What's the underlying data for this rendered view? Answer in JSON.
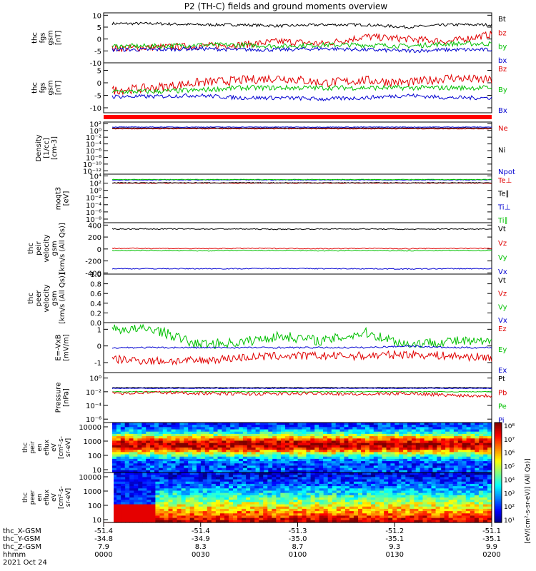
{
  "title": "P2 (TH-C) fields and ground moments overview",
  "panels": [
    {
      "label_lines": [
        "thc",
        "fgs",
        "gsm",
        "[nT]"
      ],
      "ticks": [
        "10",
        "5",
        "0",
        "-5",
        "-10"
      ],
      "tick_values": [
        10,
        5,
        0,
        -5,
        -10
      ],
      "ylim": [
        -10,
        11
      ],
      "scale": "linear",
      "legend": [
        {
          "name": "Bt",
          "color": "#000000"
        },
        {
          "name": "bz",
          "color": "#e00000"
        },
        {
          "name": "by",
          "color": "#00c000"
        },
        {
          "name": "bx",
          "color": "#0000d0"
        }
      ],
      "series": [
        {
          "name": "Bt",
          "color": "#000000",
          "level": [
            6.5,
            6.5,
            6,
            6,
            5.5,
            6,
            6,
            5,
            6,
            6
          ],
          "noise": 0.6
        },
        {
          "name": "bz",
          "color": "#e00000",
          "level": [
            -4,
            -3.5,
            -3,
            -2.5,
            -1,
            -2,
            1,
            0,
            -1,
            2
          ],
          "noise": 1.5
        },
        {
          "name": "by",
          "color": "#00c000",
          "level": [
            -3,
            -3,
            -2.5,
            -2.5,
            -3,
            -2.5,
            -2.5,
            -3,
            -2,
            -2
          ],
          "noise": 1.0
        },
        {
          "name": "bx",
          "color": "#0000d0",
          "level": [
            -4.5,
            -4.5,
            -4,
            -4.5,
            -4.5,
            -4,
            -4.5,
            -5,
            -4.5,
            -4.5
          ],
          "noise": 0.8
        }
      ]
    },
    {
      "label_lines": [
        "thc",
        "fgs",
        "gsm",
        "[nT]"
      ],
      "ticks": [
        "5",
        "0",
        "-5",
        "-10"
      ],
      "tick_values": [
        5,
        0,
        -5,
        -10
      ],
      "ylim": [
        -12,
        8
      ],
      "scale": "linear",
      "legend": [
        {
          "name": "Bz",
          "color": "#e00000"
        },
        {
          "name": "By",
          "color": "#00c000"
        },
        {
          "name": "Bx",
          "color": "#0000d0"
        }
      ],
      "series": [
        {
          "name": "Bz",
          "color": "#e00000",
          "level": [
            -3,
            -2,
            0,
            1,
            2,
            0,
            1,
            0,
            2,
            1
          ],
          "noise": 1.8
        },
        {
          "name": "By",
          "color": "#00c000",
          "level": [
            -3.5,
            -3.5,
            -3,
            -2,
            -2,
            -2,
            -2,
            -2,
            -2,
            -2
          ],
          "noise": 1.0
        },
        {
          "name": "Bx",
          "color": "#0000d0",
          "level": [
            -5.5,
            -5.5,
            -5,
            -6,
            -6,
            -6.5,
            -6,
            -5,
            -6,
            -6
          ],
          "noise": 0.8
        }
      ]
    },
    {
      "label_lines": [
        "Density",
        "[1/cc]",
        "[cm-3]"
      ],
      "ticks": [
        "10²",
        "10⁰",
        "10⁻²",
        "10⁻⁴",
        "10⁻⁶",
        "10⁻⁸",
        "10⁻¹⁰",
        "10⁻¹²"
      ],
      "tick_values": [
        2,
        0,
        -2,
        -4,
        -6,
        -8,
        -10,
        -12
      ],
      "ylim": [
        -13,
        2.5
      ],
      "scale": "log",
      "legend": [
        {
          "name": "Ne",
          "color": "#e00000"
        },
        {
          "name": "Ni",
          "color": "#000000"
        },
        {
          "name": "Npot",
          "color": "#0000d0"
        }
      ],
      "series": [
        {
          "name": "Ne",
          "color": "#e00000",
          "level": [
            0.5,
            0.5,
            0.5,
            0.5,
            0.5,
            0.5,
            0.5,
            0.5,
            0.5,
            0.5
          ],
          "noise": 0.1
        },
        {
          "name": "Ni",
          "color": "#000000",
          "level": [
            0.7,
            0.7,
            0.7,
            0.7,
            0.7,
            0.7,
            0.7,
            0.7,
            0.7,
            0.7
          ],
          "noise": 0.1
        },
        {
          "name": "Npot",
          "color": "#0000d0",
          "level": [
            1.0,
            1.0,
            1.0,
            1.0,
            1.0,
            1.0,
            1.0,
            1.0,
            1.0,
            1.0
          ],
          "noise": 0.08
        }
      ]
    },
    {
      "label_lines": [
        "moqt3",
        "[eV]"
      ],
      "ticks": [
        "10⁴",
        "10²",
        "10⁰",
        "10⁻²",
        "10⁻⁴",
        "10⁻⁶",
        "10⁻⁸"
      ],
      "tick_values": [
        4,
        2,
        0,
        -2,
        -4,
        -6,
        -8
      ],
      "ylim": [
        -9,
        4.5
      ],
      "scale": "log",
      "legend": [
        {
          "name": "Te⊥",
          "color": "#e00000"
        },
        {
          "name": "Te∥",
          "color": "#000000"
        },
        {
          "name": "Ti⊥",
          "color": "#0000d0"
        },
        {
          "name": "Ti∥",
          "color": "#00c000"
        }
      ],
      "series": [
        {
          "name": "Te⊥",
          "color": "#e00000",
          "level": [
            2,
            2,
            2,
            2,
            2,
            2,
            2,
            2,
            2,
            2
          ],
          "noise": 0.1
        },
        {
          "name": "Te∥",
          "color": "#000000",
          "level": [
            2.1,
            2.1,
            2.1,
            2.1,
            2.1,
            2.1,
            2.1,
            2.1,
            2.1,
            2.1
          ],
          "noise": 0.1
        },
        {
          "name": "Ti⊥",
          "color": "#0000d0",
          "level": [
            2.9,
            2.9,
            2.9,
            2.9,
            2.9,
            2.9,
            2.9,
            2.9,
            2.9,
            2.9
          ],
          "noise": 0.08
        },
        {
          "name": "Ti∥",
          "color": "#00c000",
          "level": [
            3.0,
            3.0,
            3.0,
            3.0,
            3.0,
            3.0,
            3.0,
            3.0,
            3.0,
            3.0
          ],
          "noise": 0.08
        }
      ]
    },
    {
      "label_lines": [
        "thc",
        "peir",
        "velocity",
        "gsm",
        "[km/s (All Qs)]"
      ],
      "ticks": [
        "400",
        "200",
        "0",
        "-200",
        "-400"
      ],
      "tick_values": [
        400,
        200,
        0,
        -200,
        -400
      ],
      "ylim": [
        -420,
        440
      ],
      "scale": "linear",
      "legend": [
        {
          "name": "Vt",
          "color": "#000000"
        },
        {
          "name": "Vz",
          "color": "#e00000"
        },
        {
          "name": "Vy",
          "color": "#00c000"
        },
        {
          "name": "Vx",
          "color": "#0000d0"
        }
      ],
      "series": [
        {
          "name": "Vt",
          "color": "#000000",
          "level": [
            335,
            335,
            335,
            335,
            330,
            335,
            335,
            330,
            335,
            335
          ],
          "noise": 8
        },
        {
          "name": "Vz",
          "color": "#e00000",
          "level": [
            10,
            10,
            5,
            10,
            10,
            5,
            10,
            5,
            10,
            10
          ],
          "noise": 8
        },
        {
          "name": "Vy",
          "color": "#00c000",
          "level": [
            -25,
            -25,
            -30,
            -25,
            -25,
            -30,
            -25,
            -30,
            -25,
            -25
          ],
          "noise": 8
        },
        {
          "name": "Vx",
          "color": "#0000d0",
          "level": [
            -330,
            -330,
            -330,
            -330,
            -325,
            -330,
            -330,
            -335,
            -330,
            -330
          ],
          "noise": 8
        }
      ]
    },
    {
      "label_lines": [
        "thc",
        "peer",
        "velocity",
        "gsm",
        "[km/s (All Qs)]"
      ],
      "ticks": [
        "1.0",
        "0.8",
        "0.6",
        "0.4",
        "0.2",
        "0.0"
      ],
      "tick_values": [
        1,
        0.8,
        0.6,
        0.4,
        0.2,
        0
      ],
      "ylim": [
        0,
        1
      ],
      "scale": "linear",
      "legend": [
        {
          "name": "Vt",
          "color": "#000000"
        },
        {
          "name": "Vz",
          "color": "#e00000"
        },
        {
          "name": "Vy",
          "color": "#00c000"
        },
        {
          "name": "Vx",
          "color": "#0000d0"
        }
      ],
      "series": []
    },
    {
      "label_lines": [
        "E=-VxB",
        "[mV/m]"
      ],
      "ticks": [
        "1",
        "0",
        "-1"
      ],
      "tick_values": [
        1,
        0,
        -1
      ],
      "ylim": [
        -1.6,
        1.4
      ],
      "scale": "linear",
      "legend": [
        {
          "name": "Ez",
          "color": "#e00000"
        },
        {
          "name": "Ey",
          "color": "#00c000"
        },
        {
          "name": "Ex",
          "color": "#0000d0"
        }
      ],
      "series": [
        {
          "name": "Ez",
          "color": "#e00000",
          "level": [
            -0.8,
            -0.9,
            -0.9,
            -0.7,
            -0.6,
            -0.6,
            -0.6,
            -0.5,
            -0.6,
            -0.7
          ],
          "noise": 0.25
        },
        {
          "name": "Ey",
          "color": "#00c000",
          "level": [
            1.0,
            1.0,
            0.1,
            0.2,
            0.6,
            0.3,
            0.8,
            0.1,
            0.3,
            0.2
          ],
          "noise": 0.3
        },
        {
          "name": "Ex",
          "color": "#0000d0",
          "level": [
            -0.1,
            -0.1,
            -0.1,
            -0.1,
            -0.1,
            -0.1,
            -0.1,
            0.0,
            -0.1,
            -0.1
          ],
          "noise": 0.05
        }
      ]
    },
    {
      "label_lines": [
        "Pressure",
        "[nPa]"
      ],
      "ticks": [
        "10⁰",
        "10⁻²",
        "10⁻⁴",
        "10⁻⁶"
      ],
      "tick_values": [
        0,
        -2,
        -4,
        -6
      ],
      "ylim": [
        -6.5,
        0.8
      ],
      "scale": "log",
      "legend": [
        {
          "name": "Pt",
          "color": "#000000"
        },
        {
          "name": "Pb",
          "color": "#e00000"
        },
        {
          "name": "Pe",
          "color": "#00c000"
        },
        {
          "name": "Pi",
          "color": "#0000d0"
        }
      ],
      "series": [
        {
          "name": "Pt",
          "color": "#000000",
          "level": [
            -1.4,
            -1.4,
            -1.4,
            -1.4,
            -1.4,
            -1.4,
            -1.4,
            -1.4,
            -1.4,
            -1.4
          ],
          "noise": 0.05
        },
        {
          "name": "Pi",
          "color": "#0000d0",
          "level": [
            -1.5,
            -1.5,
            -1.5,
            -1.5,
            -1.5,
            -1.5,
            -1.5,
            -1.5,
            -1.5,
            -1.5
          ],
          "noise": 0.05
        },
        {
          "name": "Pe",
          "color": "#00c000",
          "level": [
            -2.0,
            -2.0,
            -2.0,
            -2.0,
            -2.0,
            -2.0,
            -2.0,
            -2.0,
            -2.0,
            -2.0
          ],
          "noise": 0.05
        },
        {
          "name": "Pb",
          "color": "#e00000",
          "level": [
            -2.2,
            -2.1,
            -2.2,
            -2.3,
            -2.3,
            -2.2,
            -2.4,
            -2.2,
            -2.5,
            -2.6
          ],
          "noise": 0.25
        }
      ]
    }
  ],
  "spectrograms": [
    {
      "label_lines": [
        "thc",
        "peir",
        "en",
        "eflux",
        "eV",
        "[cm²-s-",
        "sr-eV]"
      ],
      "ticks": [
        "10000",
        "1000",
        "100",
        "10"
      ],
      "tick_values": [
        4,
        3,
        2,
        1
      ]
    },
    {
      "label_lines": [
        "thc",
        "peer",
        "en",
        "eflux",
        "eV",
        "[cm²-s-",
        "sr-eV]"
      ],
      "ticks": [
        "10000",
        "1000",
        "100",
        "10"
      ],
      "tick_values": [
        4,
        3,
        2,
        1
      ]
    }
  ],
  "colorbar": {
    "label": "[eV/(cm²-s-sr-eV)] (All Qs)]",
    "ticks": [
      "10⁸",
      "10⁷",
      "10⁶",
      "10⁵",
      "10⁴",
      "10³",
      "10²",
      "10¹"
    ]
  },
  "x_axis": {
    "rows": [
      {
        "label": "thc_X-GSM",
        "values": [
          "-51.4",
          "-51.4",
          "-51.3",
          "-51.2",
          "-51.1"
        ]
      },
      {
        "label": "thc_Y-GSM",
        "values": [
          "-34.8",
          "-34.9",
          "-35.0",
          "-35.1",
          "-35.1"
        ]
      },
      {
        "label": "thc_Z-GSM",
        "values": [
          "7.9",
          "8.3",
          "8.7",
          "9.3",
          "9.9"
        ]
      },
      {
        "label": "hhmm",
        "values": [
          "0000",
          "0030",
          "0100",
          "0130",
          "0200"
        ]
      }
    ],
    "date": "2021 Oct 24"
  },
  "chart_data": {
    "type": "line",
    "title": "P2 (TH-C) fields and ground moments overview",
    "x": [
      "0000",
      "0030",
      "0100",
      "0130",
      "0200"
    ],
    "xlabel": "hhmm",
    "date": "2021 Oct 24",
    "series": [
      {
        "name": "Bt",
        "values": [
          6.5,
          6,
          6,
          5,
          6
        ]
      },
      {
        "name": "bz",
        "values": [
          -4,
          -3,
          -1,
          0,
          2
        ]
      },
      {
        "name": "by",
        "values": [
          -3,
          -2.5,
          -3,
          -3,
          -2
        ]
      },
      {
        "name": "bx",
        "values": [
          -4.5,
          -4,
          -4.5,
          -5,
          -4.5
        ]
      },
      {
        "name": "Vt",
        "values": [
          335,
          335,
          330,
          330,
          335
        ]
      },
      {
        "name": "Vx",
        "values": [
          -330,
          -330,
          -325,
          -335,
          -330
        ]
      }
    ]
  }
}
